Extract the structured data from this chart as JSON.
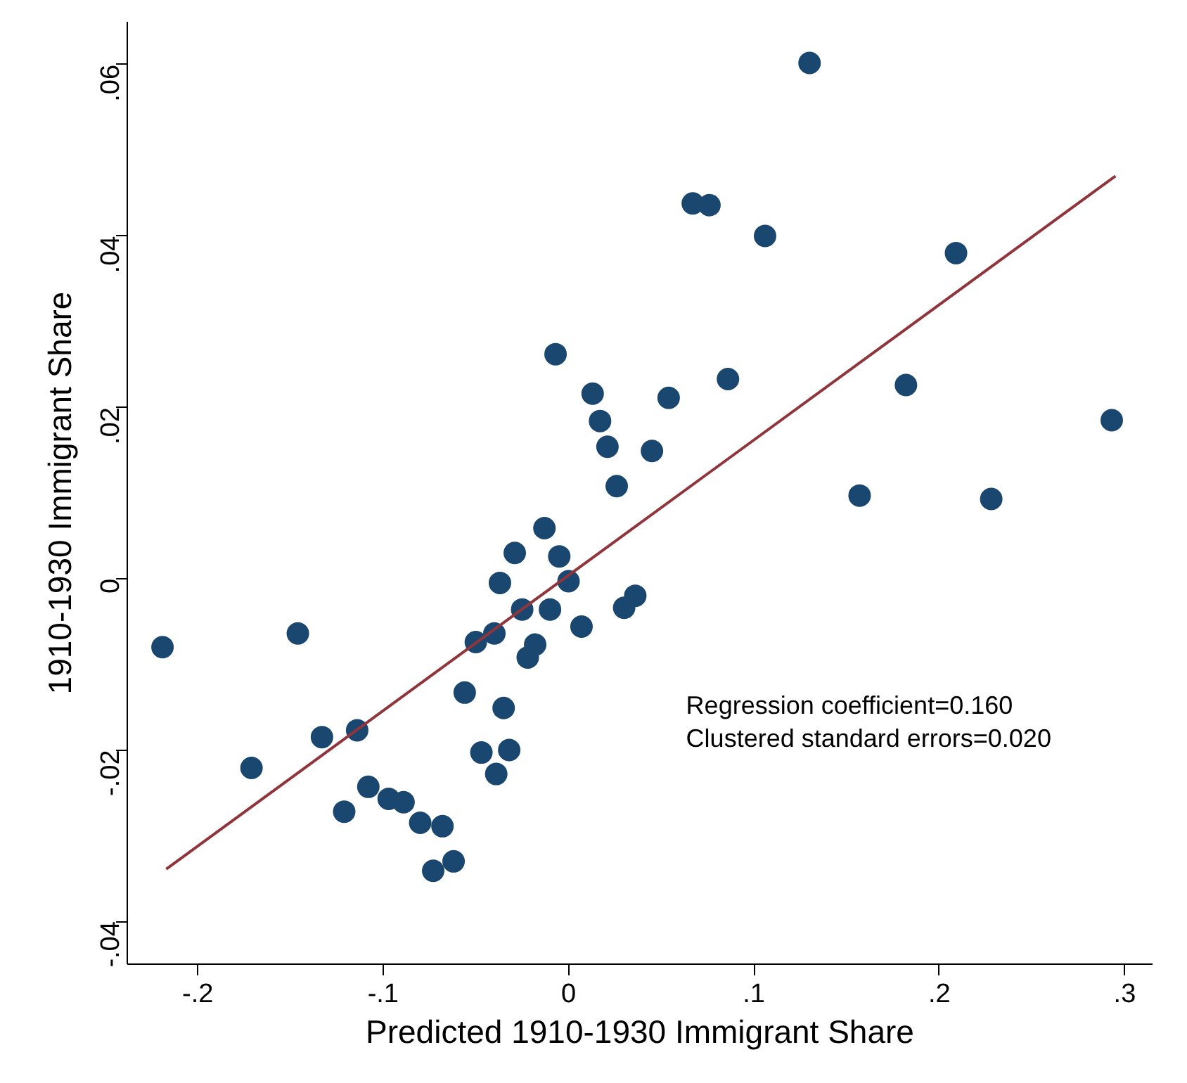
{
  "chart_data": {
    "type": "scatter",
    "xlabel": "Predicted 1910-1930 Immigrant Share",
    "ylabel": "1910-1930 Immigrant Share",
    "xlim": [
      -0.238,
      0.315
    ],
    "ylim": [
      -0.045,
      0.065
    ],
    "xticks": [
      {
        "value": -0.2,
        "label": "-.2"
      },
      {
        "value": -0.1,
        "label": "-.1"
      },
      0,
      {
        "value": 0.1,
        "label": ".1"
      },
      {
        "value": 0.2,
        "label": ".2"
      },
      {
        "value": 0.3,
        "label": ".3"
      }
    ],
    "yticks": [
      {
        "value": -0.04,
        "label": "-.04"
      },
      {
        "value": -0.02,
        "label": "-.02"
      },
      0,
      {
        "value": 0.02,
        "label": ".02"
      },
      {
        "value": 0.04,
        "label": ".04"
      },
      {
        "value": 0.06,
        "label": ".06"
      }
    ],
    "grid": false,
    "marker": "circle",
    "series": [
      {
        "color": "#1a476f",
        "x": [
          -0.219,
          -0.171,
          -0.146,
          -0.133,
          -0.121,
          -0.114,
          -0.108,
          -0.097,
          -0.089,
          -0.08,
          -0.073,
          -0.068,
          -0.062,
          -0.056,
          -0.05,
          -0.047,
          -0.04,
          -0.039,
          -0.037,
          -0.035,
          -0.032,
          -0.029,
          -0.025,
          -0.022,
          -0.018,
          -0.013,
          -0.01,
          -0.007,
          -0.005,
          0.0,
          0.007,
          0.013,
          0.017,
          0.021,
          0.026,
          0.03,
          0.036,
          0.045,
          0.054,
          0.067,
          0.076,
          0.086,
          0.106,
          0.13,
          0.157,
          0.182,
          0.209,
          0.228,
          0.293
        ],
        "values": [
          -0.008,
          -0.0221,
          -0.0064,
          -0.0185,
          -0.0272,
          -0.0177,
          -0.0243,
          -0.0257,
          -0.0261,
          -0.0285,
          -0.0341,
          -0.0289,
          -0.033,
          -0.0133,
          -0.0074,
          -0.0203,
          -0.0064,
          -0.0228,
          -0.0005,
          -0.0151,
          -0.02,
          0.003,
          -0.0036,
          -0.0092,
          -0.0077,
          0.0059,
          -0.0036,
          0.0262,
          0.0026,
          -0.0003,
          -0.0056,
          0.0216,
          0.0184,
          0.0154,
          0.0108,
          -0.0034,
          -0.002,
          0.0149,
          0.0211,
          0.0438,
          0.0436,
          0.0233,
          0.04,
          0.0602,
          0.0097,
          0.0226,
          0.038,
          0.0093,
          0.0185
        ]
      },
      {
        "type": "line",
        "color": "#90353b",
        "line_style": "solid",
        "marker": "none",
        "x": [
          -0.217,
          0.295
        ],
        "values": [
          -0.0339,
          0.047
        ]
      }
    ],
    "annotations": [
      "Regression coefficient=0.160",
      "Clustered standard errors=0.020"
    ]
  }
}
